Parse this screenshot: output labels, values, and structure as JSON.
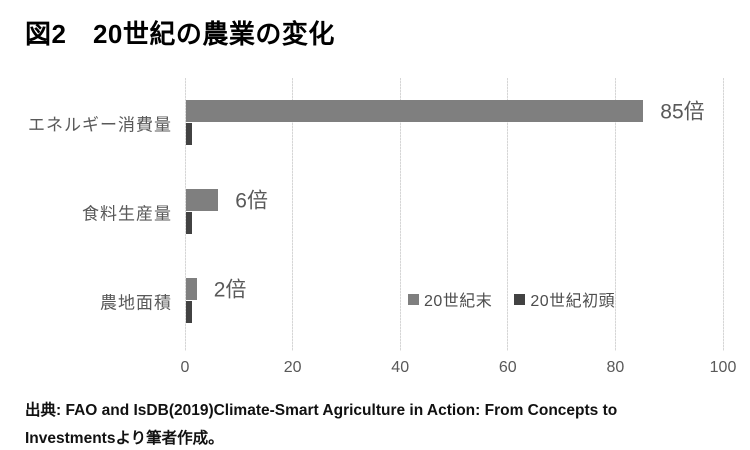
{
  "title": "図2　20世紀の農業の変化",
  "source": {
    "line1": "出典: FAO and IsDB(2019)Climate-Smart Agriculture in Action: From Concepts to",
    "line2": "Investmentsより筆者作成。"
  },
  "chart_data": {
    "type": "bar",
    "orientation": "horizontal",
    "title": "図2　20世紀の農業の変化",
    "categories": [
      "エネルギー消費量",
      "食料生産量",
      "農地面積"
    ],
    "series": [
      {
        "name": "20世紀末",
        "color": "#7f7f7f",
        "values": [
          85,
          6,
          2
        ]
      },
      {
        "name": "20世紀初頭",
        "color": "#424242",
        "values": [
          1,
          1,
          1
        ]
      }
    ],
    "data_labels": [
      "85倍",
      "6倍",
      "2倍"
    ],
    "data_label_suffix": "倍",
    "xlim": [
      0,
      100
    ],
    "x_ticks": [
      "0",
      "20",
      "40",
      "60",
      "80",
      "100"
    ],
    "grid": true,
    "legend_position": "inside-right",
    "label_color": "#595959",
    "grid_color": "#d6d6d6"
  }
}
